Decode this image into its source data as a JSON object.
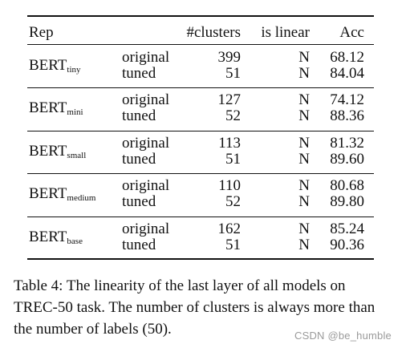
{
  "table": {
    "headers": {
      "rep": "Rep",
      "clusters": "#clusters",
      "linear": "is linear",
      "acc": "Acc"
    },
    "groups": [
      {
        "model": "BERT",
        "sub": "tiny",
        "rows": [
          {
            "variant": "original",
            "clusters": "399",
            "linear": "N",
            "acc": "68.12"
          },
          {
            "variant": "tuned",
            "clusters": "51",
            "linear": "N",
            "acc": "84.04"
          }
        ]
      },
      {
        "model": "BERT",
        "sub": "mini",
        "rows": [
          {
            "variant": "original",
            "clusters": "127",
            "linear": "N",
            "acc": "74.12"
          },
          {
            "variant": "tuned",
            "clusters": "52",
            "linear": "N",
            "acc": "88.36"
          }
        ]
      },
      {
        "model": "BERT",
        "sub": "small",
        "rows": [
          {
            "variant": "original",
            "clusters": "113",
            "linear": "N",
            "acc": "81.32"
          },
          {
            "variant": "tuned",
            "clusters": "51",
            "linear": "N",
            "acc": "89.60"
          }
        ]
      },
      {
        "model": "BERT",
        "sub": "medium",
        "rows": [
          {
            "variant": "original",
            "clusters": "110",
            "linear": "N",
            "acc": "80.68"
          },
          {
            "variant": "tuned",
            "clusters": "52",
            "linear": "N",
            "acc": "89.80"
          }
        ]
      },
      {
        "model": "BERT",
        "sub": "base",
        "rows": [
          {
            "variant": "original",
            "clusters": "162",
            "linear": "N",
            "acc": "85.24"
          },
          {
            "variant": "tuned",
            "clusters": "51",
            "linear": "N",
            "acc": "90.36"
          }
        ]
      }
    ]
  },
  "caption": "Table 4: The linearity of the last layer of all models on TREC-50 task. The number of clusters is always more than the number of labels (50).",
  "watermark": "CSDN @be_humble"
}
